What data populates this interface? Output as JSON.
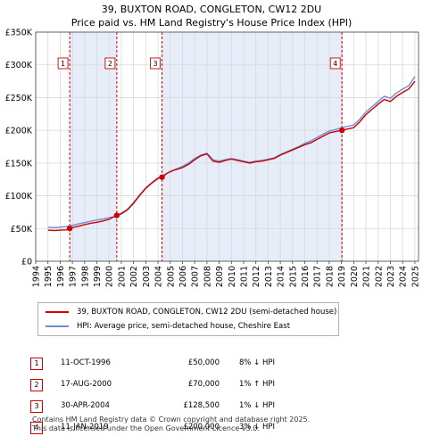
{
  "title_line1": "39, BUXTON ROAD, CONGLETON, CW12 2DU",
  "title_line2": "Price paid vs. HM Land Registry's House Price Index (HPI)",
  "chart_data": {
    "type": "line",
    "title": "39, BUXTON ROAD, CONGLETON, CW12 2DU — Price paid vs. HM Land Registry's House Price Index (HPI)",
    "xlim": [
      1994,
      2025.3
    ],
    "ylim": [
      0,
      350000
    ],
    "x_ticks": [
      "1994",
      "1995",
      "1996",
      "1997",
      "1998",
      "1999",
      "2000",
      "2001",
      "2002",
      "2003",
      "2004",
      "2005",
      "2006",
      "2007",
      "2008",
      "2009",
      "2010",
      "2011",
      "2012",
      "2013",
      "2014",
      "2015",
      "2016",
      "2017",
      "2018",
      "2019",
      "2020",
      "2021",
      "2022",
      "2023",
      "2024",
      "2025"
    ],
    "y_ticks": [
      {
        "value": 0,
        "label": "£0"
      },
      {
        "value": 50000,
        "label": "£50K"
      },
      {
        "value": 100000,
        "label": "£100K"
      },
      {
        "value": 150000,
        "label": "£150K"
      },
      {
        "value": 200000,
        "label": "£200K"
      },
      {
        "value": 250000,
        "label": "£250K"
      },
      {
        "value": 300000,
        "label": "£300K"
      },
      {
        "value": 350000,
        "label": "£350K"
      }
    ],
    "grid": true,
    "series": [
      {
        "name": "39, BUXTON ROAD, CONGLETON, CW12 2DU (semi-detached house)",
        "color": "#cc0000",
        "x": [
          1995.0,
          1995.5,
          1996.0,
          1996.5,
          1996.78,
          1997.0,
          1997.5,
          1998.0,
          1998.5,
          1999.0,
          1999.5,
          2000.0,
          2000.3,
          2000.63,
          2001.0,
          2001.5,
          2002.0,
          2002.5,
          2003.0,
          2003.5,
          2004.0,
          2004.33,
          2004.8,
          2005.3,
          2006.0,
          2006.5,
          2007.0,
          2007.5,
          2008.0,
          2008.5,
          2009.0,
          2009.5,
          2010.0,
          2010.5,
          2011.0,
          2011.5,
          2012.0,
          2012.5,
          2013.0,
          2013.5,
          2014.0,
          2014.5,
          2015.0,
          2015.5,
          2016.0,
          2016.5,
          2017.0,
          2017.5,
          2018.0,
          2018.5,
          2019.04,
          2019.5,
          2020.0,
          2020.5,
          2021.0,
          2021.5,
          2022.0,
          2022.5,
          2023.0,
          2023.5,
          2024.0,
          2024.5,
          2025.0
        ],
        "y": [
          47500,
          47000,
          47500,
          48000,
          50000,
          51500,
          53500,
          56000,
          58000,
          59500,
          61500,
          64000,
          67000,
          70000,
          73000,
          79000,
          89000,
          101000,
          112000,
          120000,
          127000,
          128500,
          135000,
          139000,
          143000,
          148000,
          155000,
          161000,
          164000,
          153000,
          151000,
          154000,
          156000,
          154000,
          152000,
          150000,
          152000,
          153000,
          155000,
          157000,
          162000,
          166000,
          170000,
          174000,
          178000,
          181000,
          186000,
          191000,
          196000,
          198000,
          200000,
          202000,
          204000,
          213000,
          224000,
          232000,
          240000,
          247000,
          244000,
          252000,
          258000,
          263000,
          275000
        ]
      },
      {
        "name": "HPI: Average price, semi-detached house, Cheshire East",
        "color": "#6a8fd8",
        "x": [
          1995.0,
          1995.5,
          1996.0,
          1996.5,
          1997.0,
          1997.5,
          1998.0,
          1998.5,
          1999.0,
          1999.5,
          2000.0,
          2000.5,
          2001.0,
          2001.5,
          2002.0,
          2002.5,
          2003.0,
          2003.5,
          2004.0,
          2004.5,
          2005.0,
          2005.5,
          2006.0,
          2006.5,
          2007.0,
          2007.5,
          2008.0,
          2008.5,
          2009.0,
          2009.5,
          2010.0,
          2010.5,
          2011.0,
          2011.5,
          2012.0,
          2012.5,
          2013.0,
          2013.5,
          2014.0,
          2014.5,
          2015.0,
          2015.5,
          2016.0,
          2016.5,
          2017.0,
          2017.5,
          2018.0,
          2018.5,
          2019.0,
          2019.5,
          2020.0,
          2020.5,
          2021.0,
          2021.5,
          2022.0,
          2022.5,
          2023.0,
          2023.5,
          2024.0,
          2024.5,
          2025.0
        ],
        "y": [
          52000,
          51500,
          52000,
          53000,
          55000,
          57000,
          59000,
          61000,
          63000,
          64500,
          66500,
          68500,
          72000,
          78000,
          88000,
          100000,
          111000,
          119000,
          126000,
          132000,
          137000,
          141000,
          145000,
          150000,
          157000,
          162000,
          165000,
          155000,
          153000,
          155000,
          157000,
          155000,
          153000,
          151000,
          153000,
          154000,
          156000,
          158000,
          163000,
          167000,
          171000,
          175000,
          180000,
          184000,
          189000,
          194000,
          199000,
          201000,
          204000,
          206000,
          208000,
          217000,
          228000,
          236000,
          244000,
          252000,
          249000,
          257000,
          263000,
          268000,
          282000
        ]
      }
    ],
    "transactions": [
      {
        "label": "1",
        "x": 1996.78,
        "y": 50000,
        "date": "11-OCT-1996",
        "price": "£50,000",
        "hpi": "8% ↓ HPI"
      },
      {
        "label": "2",
        "x": 2000.63,
        "y": 70000,
        "date": "17-AUG-2000",
        "price": "£70,000",
        "hpi": "1% ↑ HPI"
      },
      {
        "label": "3",
        "x": 2004.33,
        "y": 128500,
        "date": "30-APR-2004",
        "price": "£128,500",
        "hpi": "1% ↓ HPI"
      },
      {
        "label": "4",
        "x": 2019.04,
        "y": 200000,
        "date": "11-JAN-2019",
        "price": "£200,000",
        "hpi": "3% ↓ HPI"
      }
    ]
  },
  "legend": {
    "property_label": "39, BUXTON ROAD, CONGLETON, CW12 2DU (semi-detached house)",
    "hpi_label": "HPI: Average price, semi-detached house, Cheshire East",
    "property_color": "#cc0000",
    "hpi_color": "#6a8fd8"
  },
  "footer": {
    "line1": "Contains HM Land Registry data © Crown copyright and database right 2025.",
    "line2": "This data is licensed under the Open Government Licence v3.0."
  }
}
